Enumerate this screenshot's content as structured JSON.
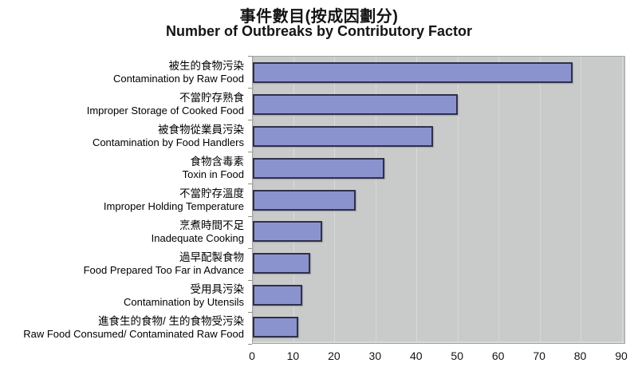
{
  "title": {
    "zh": "事件數目(按成因劃分)",
    "en": "Number of Outbreaks by Contributory Factor"
  },
  "chart_data": {
    "type": "bar",
    "orientation": "horizontal",
    "title": "事件數目(按成因劃分) / Number of Outbreaks by Contributory Factor",
    "categories": [
      {
        "zh": "被生的食物污染",
        "en": "Contamination by Raw Food"
      },
      {
        "zh": "不當貯存熟食",
        "en": "Improper Storage of Cooked Food"
      },
      {
        "zh": "被食物從業員污染",
        "en": "Contamination by Food Handlers"
      },
      {
        "zh": "食物含毒素",
        "en": "Toxin in Food"
      },
      {
        "zh": "不當貯存溫度",
        "en": "Improper Holding Temperature"
      },
      {
        "zh": "烹煮時間不足",
        "en": "Inadequate Cooking"
      },
      {
        "zh": "過早配製食物",
        "en": "Food Prepared Too Far in Advance"
      },
      {
        "zh": "受用具污染",
        "en": "Contamination by Utensils"
      },
      {
        "zh": "進食生的食物/ 生的食物受污染",
        "en": "Raw Food Consumed/ Contaminated Raw Food"
      }
    ],
    "values": [
      78,
      50,
      44,
      32,
      25,
      17,
      14,
      12,
      11
    ],
    "xlim": [
      0,
      90
    ],
    "xticks": [
      0,
      10,
      20,
      30,
      40,
      50,
      60,
      70,
      80,
      90
    ],
    "grid": true,
    "legend": false,
    "colors": {
      "bar_fill": "#8b93ce",
      "bar_border": "#30304a",
      "plot_bg": "#c9cbca",
      "gridline": "#d8dad9",
      "text": "#000000"
    }
  }
}
